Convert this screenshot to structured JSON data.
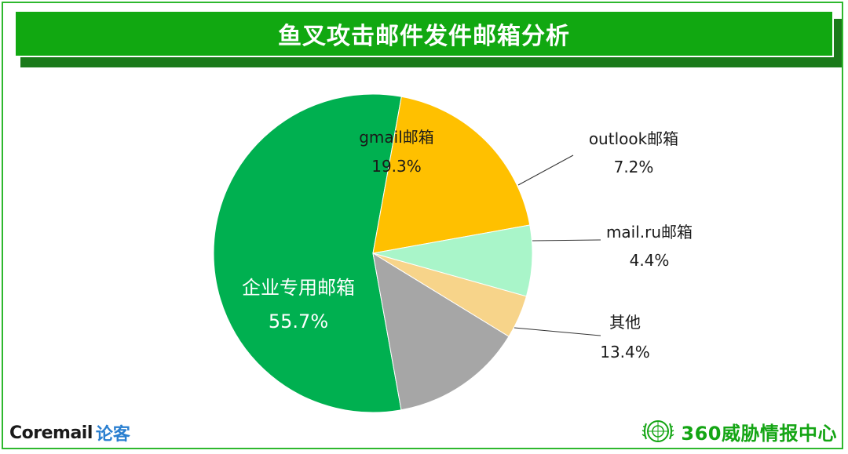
{
  "title": "鱼叉攻击邮件发件邮箱分析",
  "chart_data": {
    "type": "pie",
    "slices": [
      {
        "label": "企业专用邮箱",
        "pct_label": "55.7%",
        "value": 55.7,
        "color": "#00b050",
        "label_color": "#ffffff"
      },
      {
        "label": "gmail邮箱",
        "pct_label": "19.3%",
        "value": 19.3,
        "color": "#ffc000",
        "label_color": "#1a1a1a"
      },
      {
        "label": "outlook邮箱",
        "pct_label": "7.2%",
        "value": 7.2,
        "color": "#a9f5c9",
        "label_color": "#1a1a1a"
      },
      {
        "label": "mail.ru邮箱",
        "pct_label": "4.4%",
        "value": 4.4,
        "color": "#f7d48a",
        "label_color": "#1a1a1a"
      },
      {
        "label": "其他",
        "pct_label": "13.4%",
        "value": 13.4,
        "color": "#a6a6a6",
        "label_color": "#1a1a1a"
      }
    ]
  },
  "footer": {
    "brand": "Coremail",
    "brand_suffix": "论客",
    "org": "360威胁情报中心"
  }
}
